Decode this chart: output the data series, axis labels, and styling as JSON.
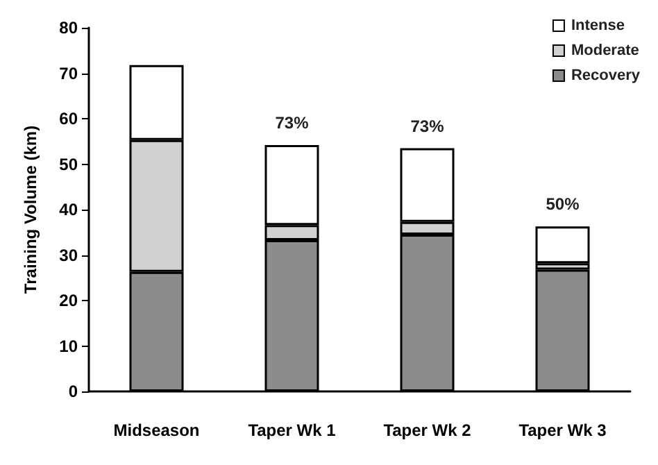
{
  "chart_data": {
    "type": "bar",
    "stacked": true,
    "ylabel": "Training Volume (km)",
    "categories": [
      "Midseason",
      "Taper Wk 1",
      "Taper Wk 2",
      "Taper Wk 3"
    ],
    "series": [
      {
        "name": "Recovery",
        "color": "#8c8c8c",
        "values": [
          26.3,
          33.3,
          34.5,
          26.8
        ]
      },
      {
        "name": "Moderate",
        "color": "#d0d0d0",
        "values": [
          29.0,
          3.3,
          2.8,
          1.4
        ]
      },
      {
        "name": "Intense",
        "color": "#ffffff",
        "values": [
          16.5,
          17.6,
          16.2,
          8.1
        ]
      }
    ],
    "annotations": [
      {
        "text": "73%",
        "x": "Taper Wk 1",
        "y": 54.2
      },
      {
        "text": "73%",
        "x": "Taper Wk 2",
        "y": 53.5
      },
      {
        "text": "50%",
        "x": "Taper Wk 3",
        "y": 36.3
      }
    ],
    "ylim": [
      0,
      80
    ],
    "yticks": [
      0,
      10,
      20,
      30,
      40,
      50,
      60,
      70,
      80
    ],
    "grid": false,
    "legend": "top right"
  }
}
